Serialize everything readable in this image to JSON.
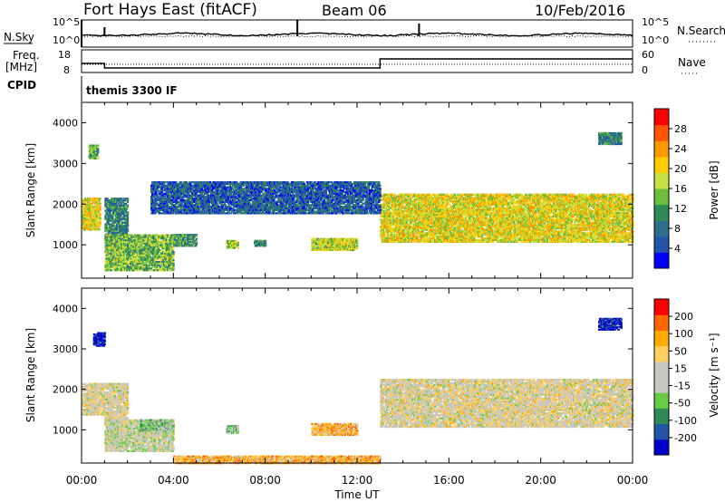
{
  "header": {
    "title": "Fort Hays East (fitACF)",
    "beam": "Beam 06",
    "date": "10/Feb/2016"
  },
  "top_panel": {
    "left_label": "N.Sky",
    "left_ticks": [
      "10^5",
      "10^0"
    ],
    "right_ticks": [
      "10^5",
      "10^0"
    ],
    "right_label": "N.Search"
  },
  "freq_panel": {
    "left_label_1": "Freq.",
    "left_label_2": "[MHz]",
    "left_ticks": [
      "18",
      "8"
    ],
    "right_ticks": [
      "60",
      "0"
    ],
    "right_label": "Nave",
    "freq_steps": [
      {
        "t": 0.0,
        "v": 12
      },
      {
        "t": 1.0,
        "v": 10
      },
      {
        "t": 13.0,
        "v": 14
      },
      {
        "t": 24.0,
        "v": 14
      }
    ]
  },
  "cpid": {
    "label": "CPID",
    "value": "themis 3300 IF"
  },
  "colors": {
    "power_scale": [
      "#0000ff",
      "#2255aa",
      "#2f6e8a",
      "#2e8b57",
      "#6bbf3c",
      "#c8e040",
      "#ffcc00",
      "#ff9900",
      "#ff5500",
      "#ff0000"
    ],
    "velocity_scale": [
      "#ff0000",
      "#ff6600",
      "#ffaa00",
      "#ffd060",
      "#c8c8c0",
      "#c8c8c0",
      "#66cc44",
      "#2e8b57",
      "#2255aa",
      "#0000cc"
    ]
  },
  "chart_data": [
    {
      "type": "heatmap",
      "title": "",
      "xlabel": "",
      "ylabel": "Slant Range [km]",
      "xlim": [
        0,
        24
      ],
      "ylim": [
        180,
        4500
      ],
      "x_ticks": [
        "00:00",
        "04:00",
        "08:00",
        "12:00",
        "16:00",
        "20:00",
        "00:00"
      ],
      "y_ticks": [
        "1000",
        "2000",
        "3000",
        "4000"
      ],
      "colorbar_label": "Power [dB]",
      "colorbar_ticks": [
        "4",
        "8",
        "12",
        "16",
        "20",
        "24",
        "28"
      ],
      "regions": [
        {
          "x": [
            0.0,
            0.8
          ],
          "y": [
            1400,
            2200
          ],
          "level": 0.6
        },
        {
          "x": [
            0.3,
            0.7
          ],
          "y": [
            3150,
            3500
          ],
          "level": 0.4
        },
        {
          "x": [
            1.0,
            2.0
          ],
          "y": [
            900,
            2200
          ],
          "level": 0.3
        },
        {
          "x": [
            1.0,
            4.0
          ],
          "y": [
            400,
            1300
          ],
          "level": 0.45
        },
        {
          "x": [
            4.0,
            5.0
          ],
          "y": [
            1000,
            1300
          ],
          "level": 0.35
        },
        {
          "x": [
            6.3,
            6.8
          ],
          "y": [
            950,
            1150
          ],
          "level": 0.5
        },
        {
          "x": [
            7.5,
            8.0
          ],
          "y": [
            1000,
            1150
          ],
          "level": 0.3
        },
        {
          "x": [
            10.0,
            12.0
          ],
          "y": [
            900,
            1200
          ],
          "level": 0.55
        },
        {
          "x": [
            13.0,
            24.0
          ],
          "y": [
            1100,
            2300
          ],
          "level": 0.6
        },
        {
          "x": [
            22.5,
            23.5
          ],
          "y": [
            3500,
            3800
          ],
          "level": 0.3
        },
        {
          "x": [
            3.0,
            13.0
          ],
          "y": [
            1800,
            2600
          ],
          "level": 0.2
        }
      ]
    },
    {
      "type": "heatmap",
      "title": "",
      "xlabel": "Time UT",
      "ylabel": "Slant Range [km]",
      "xlim": [
        0,
        24
      ],
      "ylim": [
        180,
        4500
      ],
      "x_ticks": [
        "00:00",
        "04:00",
        "08:00",
        "12:00",
        "16:00",
        "20:00",
        "00:00"
      ],
      "y_ticks": [
        "1000",
        "2000",
        "3000",
        "4000"
      ],
      "colorbar_label": "Velocity [m s⁻¹]",
      "colorbar_ticks": [
        "200",
        "100",
        "50",
        "15",
        "-15",
        "-50",
        "-100",
        "-200"
      ],
      "regions": [
        {
          "x": [
            0.0,
            1.0
          ],
          "y": [
            1400,
            2200
          ],
          "level": 0.45
        },
        {
          "x": [
            0.5,
            1.0
          ],
          "y": [
            3100,
            3450
          ],
          "level": 0.95
        },
        {
          "x": [
            1.0,
            2.0
          ],
          "y": [
            600,
            2200
          ],
          "level": 0.45
        },
        {
          "x": [
            1.0,
            4.0
          ],
          "y": [
            500,
            1300
          ],
          "level": 0.5
        },
        {
          "x": [
            2.5,
            4.0
          ],
          "y": [
            1000,
            1300
          ],
          "level": 0.6
        },
        {
          "x": [
            6.3,
            6.8
          ],
          "y": [
            950,
            1150
          ],
          "level": 0.6
        },
        {
          "x": [
            10.0,
            12.0
          ],
          "y": [
            900,
            1200
          ],
          "level": 0.3
        },
        {
          "x": [
            13.0,
            24.0
          ],
          "y": [
            1100,
            2300
          ],
          "level": 0.45
        },
        {
          "x": [
            22.5,
            23.5
          ],
          "y": [
            3500,
            3800
          ],
          "level": 0.95
        },
        {
          "x": [
            4.0,
            13.0
          ],
          "y": [
            200,
            400
          ],
          "level": 0.3
        }
      ]
    }
  ]
}
